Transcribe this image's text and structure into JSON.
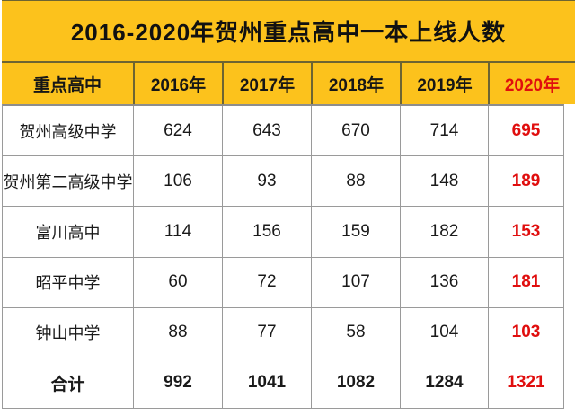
{
  "title": "2016-2020年贺州重点高中一本上线人数",
  "colors": {
    "band_yellow": "#FCC21C",
    "separator_olive": "#6d6432",
    "gridline_gray": "#9a9a9a",
    "accent_red": "#E00E0E",
    "text_black": "#1a1a1a"
  },
  "chart_data": {
    "type": "table",
    "title": "2016-2020年贺州重点高中一本上线人数",
    "row_header_label": "重点高中",
    "categories": [
      "2016年",
      "2017年",
      "2018年",
      "2019年",
      "2020年"
    ],
    "highlight_column": "2020年",
    "highlight_color": "#E00E0E",
    "series": [
      {
        "name": "贺州高级中学",
        "values": [
          624,
          643,
          670,
          714,
          695
        ]
      },
      {
        "name": "贺州第二高级中学",
        "values": [
          106,
          93,
          88,
          148,
          189
        ]
      },
      {
        "name": "富川高中",
        "values": [
          114,
          156,
          159,
          182,
          153
        ]
      },
      {
        "name": "昭平中学",
        "values": [
          60,
          72,
          107,
          136,
          181
        ]
      },
      {
        "name": "钟山中学",
        "values": [
          88,
          77,
          58,
          104,
          103
        ]
      },
      {
        "name": "合计",
        "values": [
          992,
          1041,
          1082,
          1284,
          1321
        ]
      }
    ],
    "total_row_name": "合计",
    "layout": {
      "title_band_background": "#FCC21C",
      "header_background": "#FCC21C",
      "body_background": "#ffffff",
      "grid": true
    }
  }
}
